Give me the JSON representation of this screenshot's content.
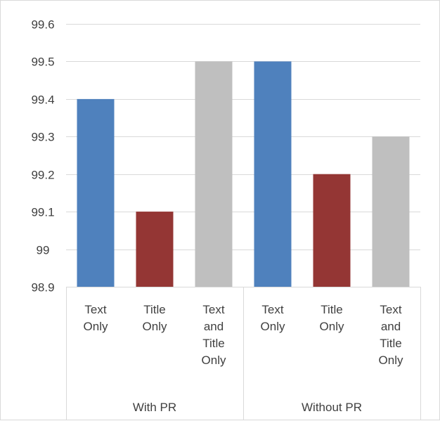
{
  "chart_data": {
    "type": "bar",
    "title": "",
    "xlabel": "",
    "ylabel": "",
    "ylim": [
      98.9,
      99.6
    ],
    "yticks": [
      98.9,
      99,
      99.1,
      99.2,
      99.3,
      99.4,
      99.5,
      99.6
    ],
    "ytick_labels": [
      "98.9",
      "99",
      "99.1",
      "99.2",
      "99.3",
      "99.4",
      "99.5",
      "99.6"
    ],
    "grid": true,
    "legend": "none",
    "colors": [
      "#4f81bd",
      "#943634",
      "#bfbfbf"
    ],
    "groups": [
      {
        "name": "With PR",
        "categories": [
          [
            "Text",
            "Only"
          ],
          [
            "Title",
            "Only"
          ],
          [
            "Text",
            "and",
            "Title",
            "Only"
          ]
        ],
        "values": [
          99.4,
          99.1,
          99.5
        ]
      },
      {
        "name": "Without PR",
        "categories": [
          [
            "Text",
            "Only"
          ],
          [
            "Title",
            "Only"
          ],
          [
            "Text",
            "and",
            "Title",
            "Only"
          ]
        ],
        "values": [
          99.5,
          99.2,
          99.3
        ]
      }
    ]
  }
}
